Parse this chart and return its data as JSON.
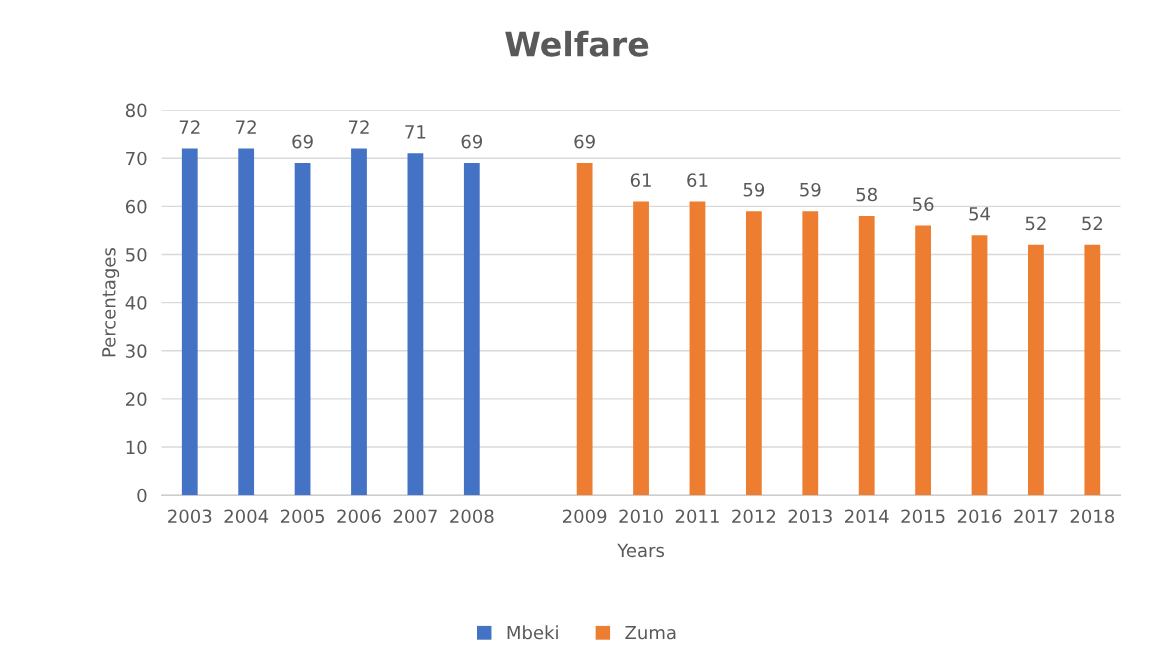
{
  "chart_data": {
    "type": "bar",
    "title": "Welfare",
    "xlabel": "Years",
    "ylabel": "Percentages",
    "categories": [
      "2003",
      "2004",
      "2005",
      "2006",
      "2007",
      "2008",
      null,
      "2009",
      "2010",
      "2011",
      "2012",
      "2013",
      "2014",
      "2015",
      "2016",
      "2017",
      "2018"
    ],
    "series": [
      {
        "name": "Mbeki",
        "color": "#4472c4",
        "values": [
          72,
          72,
          69,
          72,
          71,
          69,
          null,
          null,
          null,
          null,
          null,
          null,
          null,
          null,
          null,
          null,
          null
        ]
      },
      {
        "name": "Zuma",
        "color": "#ed7d31",
        "values": [
          null,
          null,
          null,
          null,
          null,
          null,
          null,
          69,
          61,
          61,
          59,
          59,
          58,
          56,
          54,
          52,
          52
        ]
      }
    ],
    "ylim": [
      0,
      80
    ],
    "yticks": [
      0,
      10,
      20,
      30,
      40,
      50,
      60,
      70,
      80
    ],
    "grid": "y",
    "legend": "bottom",
    "data_labels": true
  }
}
